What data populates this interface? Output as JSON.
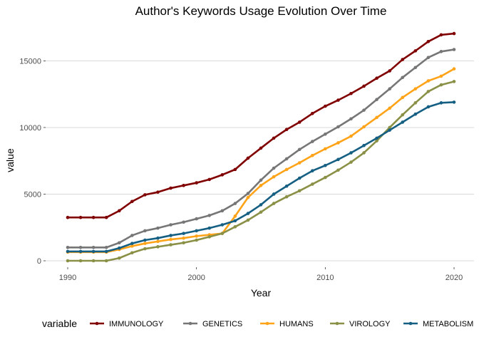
{
  "chart_data": {
    "type": "line",
    "title": "Author's Keywords Usage Evolution Over Time",
    "xlabel": "Year",
    "ylabel": "value",
    "xlim": [
      1990,
      2020
    ],
    "ylim": [
      0,
      17000
    ],
    "x_ticks": [
      1990,
      2000,
      2010,
      2020
    ],
    "y_ticks": [
      0,
      5000,
      10000,
      15000
    ],
    "grid": "horizontal",
    "legend": {
      "title": "variable",
      "position": "bottom"
    },
    "x": [
      1990,
      1991,
      1992,
      1993,
      1994,
      1995,
      1996,
      1997,
      1998,
      1999,
      2000,
      2001,
      2002,
      2003,
      2004,
      2005,
      2006,
      2007,
      2008,
      2009,
      2010,
      2011,
      2012,
      2013,
      2014,
      2015,
      2016,
      2017,
      2018,
      2019,
      2020
    ],
    "series": [
      {
        "name": "IMMUNOLOGY",
        "color": "#800000",
        "values": [
          3250,
          3250,
          3250,
          3250,
          3750,
          4450,
          4950,
          5150,
          5450,
          5650,
          5850,
          6100,
          6450,
          6850,
          7700,
          8450,
          9200,
          9850,
          10400,
          11050,
          11600,
          12050,
          12550,
          13100,
          13700,
          14250,
          15100,
          15750,
          16450,
          16950,
          17050
        ]
      },
      {
        "name": "GENETICS",
        "color": "#767676",
        "values": [
          1000,
          1000,
          1000,
          1000,
          1350,
          1900,
          2250,
          2450,
          2700,
          2900,
          3150,
          3400,
          3750,
          4300,
          5050,
          6050,
          6950,
          7650,
          8350,
          8950,
          9500,
          10050,
          10650,
          11300,
          12100,
          12900,
          13750,
          14500,
          15250,
          15700,
          15850
        ]
      },
      {
        "name": "HUMANS",
        "color": "#FFA319",
        "values": [
          650,
          650,
          650,
          650,
          850,
          1100,
          1300,
          1450,
          1600,
          1700,
          1850,
          1950,
          2050,
          3350,
          4750,
          5650,
          6300,
          6850,
          7350,
          7900,
          8400,
          8850,
          9350,
          10050,
          10750,
          11450,
          12250,
          12900,
          13500,
          13850,
          14400
        ]
      },
      {
        "name": "VIROLOGY",
        "color": "#8A9045",
        "values": [
          0,
          0,
          0,
          0,
          200,
          600,
          900,
          1050,
          1200,
          1350,
          1550,
          1800,
          2050,
          2550,
          3050,
          3650,
          4300,
          4800,
          5250,
          5750,
          6250,
          6800,
          7400,
          8100,
          9000,
          10000,
          10950,
          11850,
          12700,
          13200,
          13450
        ]
      },
      {
        "name": "METABOLISM",
        "color": "#155F83",
        "values": [
          700,
          700,
          700,
          700,
          950,
          1300,
          1550,
          1700,
          1900,
          2050,
          2250,
          2450,
          2700,
          3000,
          3550,
          4200,
          5000,
          5600,
          6200,
          6750,
          7150,
          7600,
          8100,
          8650,
          9200,
          9800,
          10400,
          11000,
          11550,
          11850,
          11900
        ]
      }
    ]
  }
}
